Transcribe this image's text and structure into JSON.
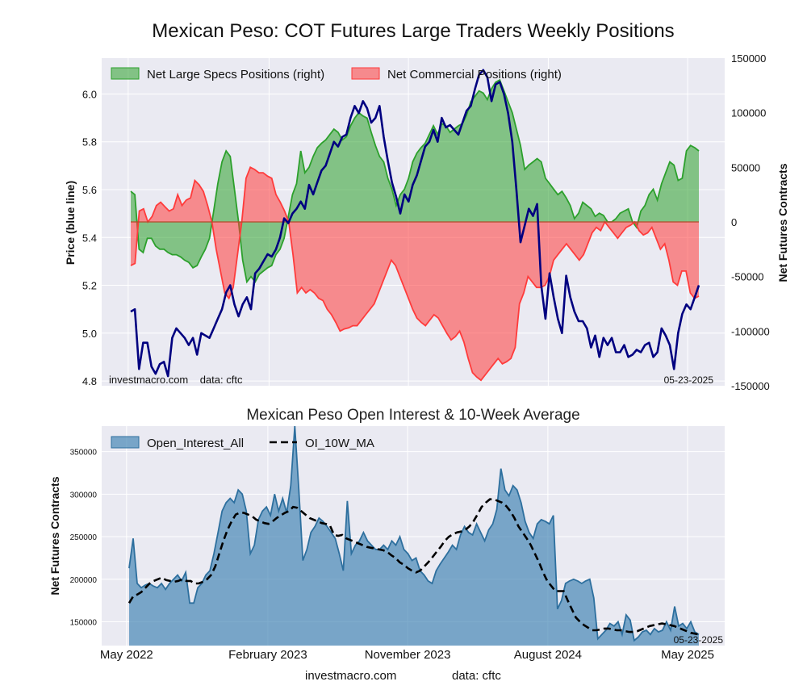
{
  "title": "Mexican Peso: COT Futures Large Traders Weekly Positions",
  "footer": {
    "left": "investmacro.com",
    "right": "data: cftc"
  },
  "colors": {
    "specs": "#2ca02c",
    "commercial": "#ff3b3b",
    "price": "#000080",
    "oi": "#3b7fb0",
    "ma": "#000000",
    "plot_bg": "#eaeaf2"
  },
  "chart_data": [
    {
      "type": "area",
      "title": "",
      "ylabel_left": "Price (blue line)",
      "ylabel_right": "Net Futures Contracts",
      "ylim_left": [
        4.78,
        6.15
      ],
      "ylim_right": [
        -150000,
        150000
      ],
      "y_ticks_left": [
        "4.8",
        "5.0",
        "5.2",
        "5.4",
        "5.6",
        "5.8",
        "6.0"
      ],
      "y_ticks_right": [
        "-150000",
        "-100000",
        "-50000",
        "0",
        "50000",
        "100000",
        "150000"
      ],
      "legend_position": "top-left",
      "annotation_left": "investmacro.com    data: cftc",
      "annotation_right": "05-23-2025",
      "x_start": "2022-05-06",
      "x_end": "2025-05-23",
      "series": [
        {
          "name": "Net Large Specs Positions (right)",
          "kind": "area",
          "values": [
            28000,
            25000,
            -25000,
            -28000,
            -15000,
            -15000,
            -22000,
            -25000,
            -25000,
            -28000,
            -30000,
            -30000,
            -32000,
            -35000,
            -37000,
            -42000,
            -40000,
            -32000,
            -25000,
            -15000,
            10000,
            35000,
            55000,
            65000,
            60000,
            30000,
            0,
            -35000,
            -55000,
            -50000,
            -55000,
            -48000,
            -45000,
            -42000,
            -40000,
            -30000,
            -25000,
            -15000,
            5000,
            25000,
            35000,
            65000,
            45000,
            50000,
            60000,
            68000,
            72000,
            75000,
            80000,
            85000,
            82000,
            75000,
            78000,
            88000,
            95000,
            100000,
            97000,
            95000,
            82000,
            70000,
            60000,
            55000,
            40000,
            30000,
            15000,
            25000,
            30000,
            40000,
            55000,
            63000,
            68000,
            72000,
            80000,
            88000,
            80000,
            90000,
            88000,
            82000,
            85000,
            88000,
            90000,
            98000,
            110000,
            115000,
            120000,
            118000,
            112000,
            122000,
            128000,
            130000,
            120000,
            110000,
            100000,
            85000,
            70000,
            48000,
            52000,
            55000,
            58000,
            55000,
            40000,
            35000,
            30000,
            25000,
            28000,
            22000,
            15000,
            3000,
            8000,
            18000,
            15000,
            12000,
            5000,
            8000,
            6000,
            0,
            0,
            3000,
            8000,
            10000,
            12000,
            0,
            -5000,
            10000,
            15000,
            25000,
            30000,
            20000,
            35000,
            45000,
            55000,
            52000,
            38000,
            40000,
            65000,
            70000,
            68000,
            65000
          ]
        },
        {
          "name": "Net Commercial Positions (right)",
          "kind": "area",
          "values": [
            -40000,
            -38000,
            10000,
            12000,
            0,
            5000,
            15000,
            18000,
            14000,
            10000,
            12000,
            25000,
            15000,
            20000,
            22000,
            38000,
            34000,
            28000,
            15000,
            0,
            -25000,
            -45000,
            -65000,
            -70000,
            -60000,
            -30000,
            0,
            40000,
            50000,
            48000,
            45000,
            45000,
            42000,
            40000,
            25000,
            18000,
            10000,
            0,
            -30000,
            -65000,
            -60000,
            -65000,
            -62000,
            -65000,
            -70000,
            -72000,
            -80000,
            -85000,
            -92000,
            -100000,
            -98000,
            -97000,
            -95000,
            -95000,
            -90000,
            -85000,
            -80000,
            -75000,
            -65000,
            -55000,
            -45000,
            -35000,
            -40000,
            -50000,
            -60000,
            -70000,
            -80000,
            -88000,
            -92000,
            -95000,
            -90000,
            -85000,
            -88000,
            -95000,
            -102000,
            -108000,
            -105000,
            -100000,
            -110000,
            -125000,
            -138000,
            -142000,
            -145000,
            -140000,
            -135000,
            -130000,
            -125000,
            -130000,
            -128000,
            -125000,
            -115000,
            -75000,
            -65000,
            -50000,
            -55000,
            -60000,
            -60000,
            -58000,
            -50000,
            -35000,
            -30000,
            -25000,
            -20000,
            -25000,
            -30000,
            -35000,
            -30000,
            -20000,
            -10000,
            -5000,
            -8000,
            0,
            -5000,
            -10000,
            -15000,
            -10000,
            -5000,
            -3000,
            0,
            -8000,
            -12000,
            -10000,
            -5000,
            -15000,
            -25000,
            -20000,
            -35000,
            -55000,
            -58000,
            -45000,
            -45000,
            -65000,
            -70000,
            -68000
          ]
        },
        {
          "name": "Price",
          "kind": "line",
          "values": [
            5.09,
            5.1,
            4.85,
            4.96,
            4.96,
            4.86,
            4.83,
            4.87,
            4.88,
            4.82,
            4.98,
            5.02,
            5.0,
            4.98,
            4.95,
            4.98,
            4.91,
            5.0,
            4.99,
            4.98,
            5.02,
            5.06,
            5.1,
            5.17,
            5.2,
            5.12,
            5.07,
            5.12,
            5.15,
            5.1,
            5.25,
            5.27,
            5.3,
            5.33,
            5.32,
            5.35,
            5.4,
            5.48,
            5.46,
            5.5,
            5.52,
            5.55,
            5.52,
            5.62,
            5.58,
            5.63,
            5.68,
            5.7,
            5.75,
            5.8,
            5.78,
            5.82,
            5.83,
            5.9,
            5.95,
            5.92,
            5.97,
            5.94,
            5.88,
            5.9,
            5.95,
            5.82,
            5.72,
            5.63,
            5.57,
            5.5,
            5.58,
            5.55,
            5.62,
            5.66,
            5.72,
            5.78,
            5.8,
            5.85,
            5.8,
            5.9,
            5.86,
            5.87,
            5.85,
            5.83,
            5.88,
            5.93,
            5.95,
            6.02,
            6.08,
            6.1,
            6.07,
            5.97,
            6.04,
            6.05,
            6.0,
            5.92,
            5.8,
            5.6,
            5.38,
            5.45,
            5.52,
            5.49,
            5.54,
            5.2,
            5.06,
            5.25,
            5.15,
            5.06,
            5.0,
            5.24,
            5.15,
            5.09,
            5.05,
            5.05,
            5.02,
            4.94,
            4.99,
            4.9,
            4.98,
            4.95,
            4.98,
            4.92,
            4.92,
            4.95,
            4.9,
            4.91,
            4.93,
            4.92,
            4.95,
            4.96,
            4.9,
            4.92,
            5.02,
            4.99,
            4.95,
            4.85,
            5.0,
            5.08,
            5.12,
            5.1,
            5.15,
            5.2
          ]
        }
      ]
    },
    {
      "type": "area",
      "title": "Mexican Peso Open Interest & 10-Week Average",
      "ylabel": "Net Futures Contracts",
      "ylim": [
        122000,
        380000
      ],
      "y_ticks": [
        "150000",
        "200000",
        "250000",
        "300000",
        "350000"
      ],
      "x_tick_labels": [
        "May 2022",
        "February 2023",
        "November 2023",
        "August 2024",
        "May 2025"
      ],
      "x_tick_dates": [
        "2022-05-01",
        "2023-02-01",
        "2023-11-01",
        "2024-08-01",
        "2025-05-01"
      ],
      "legend_position": "top-left",
      "annotation_right": "05-23-2025",
      "series": [
        {
          "name": "Open_Interest_All",
          "kind": "area",
          "values": [
            213000,
            248000,
            195000,
            190000,
            193000,
            195000,
            192000,
            190000,
            195000,
            188000,
            195000,
            200000,
            205000,
            198000,
            208000,
            172000,
            172000,
            190000,
            195000,
            205000,
            210000,
            230000,
            255000,
            280000,
            290000,
            295000,
            290000,
            305000,
            300000,
            280000,
            230000,
            240000,
            270000,
            280000,
            285000,
            275000,
            300000,
            280000,
            295000,
            278000,
            310000,
            380000,
            305000,
            222000,
            235000,
            255000,
            262000,
            272000,
            268000,
            262000,
            255000,
            248000,
            230000,
            210000,
            292000,
            230000,
            240000,
            245000,
            255000,
            245000,
            240000,
            235000,
            235000,
            240000,
            235000,
            245000,
            240000,
            250000,
            235000,
            230000,
            222000,
            225000,
            210000,
            205000,
            198000,
            195000,
            210000,
            218000,
            225000,
            232000,
            240000,
            235000,
            252000,
            262000,
            255000,
            252000,
            265000,
            255000,
            245000,
            258000,
            265000,
            282000,
            330000,
            305000,
            298000,
            310000,
            305000,
            290000,
            268000,
            255000,
            248000,
            265000,
            270000,
            268000,
            265000,
            275000,
            165000,
            175000,
            195000,
            198000,
            200000,
            198000,
            195000,
            198000,
            200000,
            178000,
            130000,
            135000,
            140000,
            148000,
            145000,
            150000,
            135000,
            158000,
            152000,
            128000,
            132000,
            138000,
            140000,
            135000,
            142000,
            138000,
            140000,
            150000,
            140000,
            168000,
            145000,
            148000,
            142000,
            150000,
            138000,
            135000
          ]
        },
        {
          "name": "OI_10W_MA",
          "kind": "line",
          "values": [
            172000,
            180000,
            182000,
            185000,
            190000,
            195000,
            198000,
            200000,
            202000,
            199000,
            198000,
            197000,
            198000,
            200000,
            198000,
            198000,
            195000,
            195000,
            197000,
            200000,
            205000,
            215000,
            230000,
            245000,
            258000,
            268000,
            276000,
            278000,
            278000,
            276000,
            274000,
            270000,
            268000,
            266000,
            265000,
            268000,
            272000,
            275000,
            278000,
            280000,
            285000,
            284000,
            280000,
            276000,
            272000,
            270000,
            268000,
            266000,
            265000,
            263000,
            252000,
            251000,
            252000,
            248000,
            246000,
            244000,
            242000,
            240000,
            238000,
            237000,
            236000,
            235000,
            234000,
            232000,
            228000,
            225000,
            220000,
            217000,
            213000,
            210000,
            208000,
            210000,
            215000,
            220000,
            226000,
            232000,
            238000,
            245000,
            250000,
            253000,
            255000,
            256000,
            258000,
            262000,
            268000,
            276000,
            285000,
            290000,
            294000,
            294000,
            292000,
            290000,
            286000,
            280000,
            272000,
            262000,
            255000,
            248000,
            240000,
            230000,
            220000,
            208000,
            198000,
            192000,
            186000,
            186000,
            186000,
            175000,
            165000,
            155000,
            150000,
            146000,
            143000,
            140000,
            140000,
            141000,
            142000,
            142000,
            141000,
            140000,
            140000,
            139000,
            138000,
            138000,
            139000,
            141000,
            143000,
            145000,
            146000,
            147000,
            148000,
            147000,
            146000,
            145000,
            143000,
            141000,
            139000,
            137000,
            136000,
            135000
          ]
        }
      ]
    }
  ]
}
